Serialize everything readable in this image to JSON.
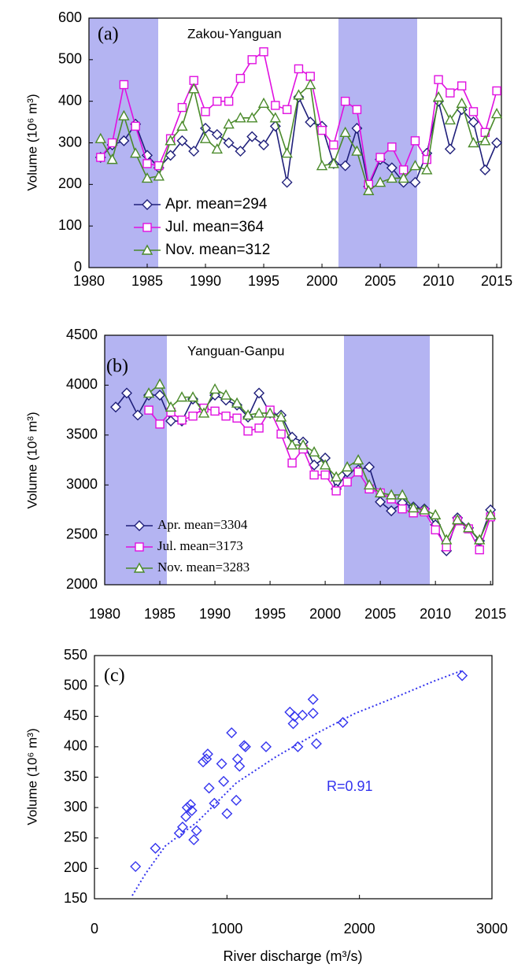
{
  "chart_data": [
    {
      "type": "line",
      "panel_label": "(a)",
      "title": "Zakou-Yanguan",
      "ylabel": "Volume (10⁶ m³)",
      "x": [
        1981,
        1982,
        1983,
        1984,
        1985,
        1986,
        1987,
        1988,
        1989,
        1990,
        1991,
        1992,
        1993,
        1994,
        1995,
        1996,
        1997,
        1998,
        1999,
        2000,
        2001,
        2002,
        2003,
        2004,
        2005,
        2006,
        2007,
        2008,
        2009,
        2010,
        2011,
        2012,
        2013,
        2014,
        2015
      ],
      "xlim": [
        1980,
        2015.4
      ],
      "xticks": [
        1980,
        1985,
        1990,
        1995,
        2000,
        2005,
        2010,
        2015
      ],
      "ylim": [
        0,
        600
      ],
      "yticks": [
        0,
        100,
        200,
        300,
        400,
        500,
        600
      ],
      "series": [
        {
          "name": "Apr. mean=294",
          "color": "#1f1f7a",
          "marker": "diamond",
          "values": [
            265,
            295,
            305,
            345,
            270,
            240,
            270,
            305,
            280,
            335,
            320,
            300,
            280,
            315,
            295,
            340,
            205,
            410,
            350,
            340,
            250,
            245,
            335,
            195,
            260,
            240,
            205,
            205,
            275,
            400,
            285,
            380,
            350,
            235,
            300
          ]
        },
        {
          "name": "Jul.  mean=364",
          "color": "#e010e0",
          "marker": "square",
          "values": [
            265,
            300,
            440,
            340,
            250,
            245,
            310,
            385,
            450,
            375,
            400,
            400,
            455,
            500,
            519,
            390,
            380,
            478,
            460,
            330,
            295,
            400,
            380,
            200,
            265,
            290,
            235,
            305,
            260,
            452,
            420,
            437,
            375,
            325,
            425
          ]
        },
        {
          "name": "Nov. mean=312",
          "color": "#4a8a2a",
          "marker": "triangle",
          "values": [
            310,
            260,
            365,
            275,
            215,
            220,
            305,
            340,
            430,
            310,
            285,
            345,
            360,
            360,
            395,
            360,
            275,
            415,
            440,
            245,
            250,
            325,
            280,
            185,
            205,
            215,
            215,
            245,
            235,
            410,
            355,
            395,
            300,
            305,
            370
          ]
        }
      ]
    },
    {
      "type": "line",
      "panel_label": "(b)",
      "title": "Yanguan-Ganpu",
      "ylabel": "Volume (10⁶ m³)",
      "x": [
        1981,
        1982,
        1983,
        1984,
        1985,
        1986,
        1987,
        1988,
        1989,
        1990,
        1991,
        1992,
        1993,
        1994,
        1995,
        1996,
        1997,
        1998,
        1999,
        2000,
        2001,
        2002,
        2003,
        2004,
        2005,
        2006,
        2007,
        2008,
        2009,
        2010,
        2011,
        2012,
        2013,
        2014,
        2015
      ],
      "xlim": [
        1980,
        2015.2
      ],
      "xticks": [
        1980,
        1985,
        1990,
        1995,
        2000,
        2005,
        2010,
        2015
      ],
      "ylim": [
        2000,
        4500
      ],
      "yticks": [
        2000,
        2500,
        3000,
        3500,
        4000,
        4500
      ],
      "series": [
        {
          "name": "Apr. mean=3304",
          "color": "#1f1f7a",
          "marker": "diamond",
          "values": [
            3780,
            3920,
            3700,
            3900,
            3900,
            3640,
            3640,
            3860,
            3760,
            3900,
            3850,
            3800,
            3680,
            3920,
            3720,
            3700,
            3480,
            3430,
            3200,
            3270,
            2960,
            3130,
            3150,
            3180,
            2830,
            2740,
            2820,
            2780,
            2760,
            2600,
            2340,
            2670,
            2570,
            2440,
            2750
          ]
        },
        {
          "name": "Jul.  mean=3173",
          "color": "#e010e0",
          "marker": "square",
          "values": [
            null,
            null,
            null,
            3750,
            3610,
            3730,
            3650,
            3690,
            3770,
            3740,
            3690,
            3670,
            3540,
            3570,
            3750,
            3510,
            3220,
            3360,
            3100,
            3100,
            2940,
            3030,
            3130,
            2960,
            2920,
            2860,
            2760,
            2720,
            2730,
            2550,
            2380,
            2640,
            2560,
            2350,
            2680
          ]
        },
        {
          "name": "Nov. mean=3283",
          "color": "#4a8a2a",
          "marker": "triangle",
          "values": [
            null,
            null,
            null,
            3920,
            4010,
            3780,
            3880,
            3880,
            3720,
            3960,
            3900,
            3820,
            3700,
            3720,
            3720,
            3680,
            3400,
            3400,
            3330,
            3200,
            3080,
            3180,
            3250,
            3000,
            2920,
            2900,
            2900,
            2770,
            2750,
            2700,
            2450,
            2650,
            2570,
            2450,
            2700
          ]
        }
      ]
    },
    {
      "type": "scatter",
      "panel_label": "(c)",
      "annotation": "R=0.91",
      "xlabel": "River discharge (m³/s)",
      "ylabel": "Volume (10⁶ m³)",
      "x": [
        310,
        460,
        640,
        665,
        690,
        700,
        725,
        735,
        750,
        770,
        820,
        845,
        855,
        865,
        905,
        960,
        975,
        1000,
        1035,
        1070,
        1080,
        1095,
        1130,
        1140,
        1295,
        1475,
        1500,
        1510,
        1535,
        1570,
        1650,
        1650,
        1675,
        1875,
        2775
      ],
      "y": [
        203,
        233,
        258,
        268,
        285,
        300,
        305,
        295,
        247,
        262,
        375,
        380,
        388,
        332,
        307,
        372,
        343,
        290,
        423,
        312,
        380,
        368,
        402,
        400,
        400,
        457,
        438,
        450,
        400,
        452,
        478,
        455,
        405,
        440,
        517
      ],
      "color": "#3333ee",
      "xlim": [
        0,
        3000
      ],
      "xticks": [
        0,
        1000,
        2000,
        3000
      ],
      "ylim": [
        150,
        550
      ],
      "yticks": [
        150,
        200,
        250,
        300,
        350,
        400,
        450,
        500,
        550
      ]
    }
  ]
}
